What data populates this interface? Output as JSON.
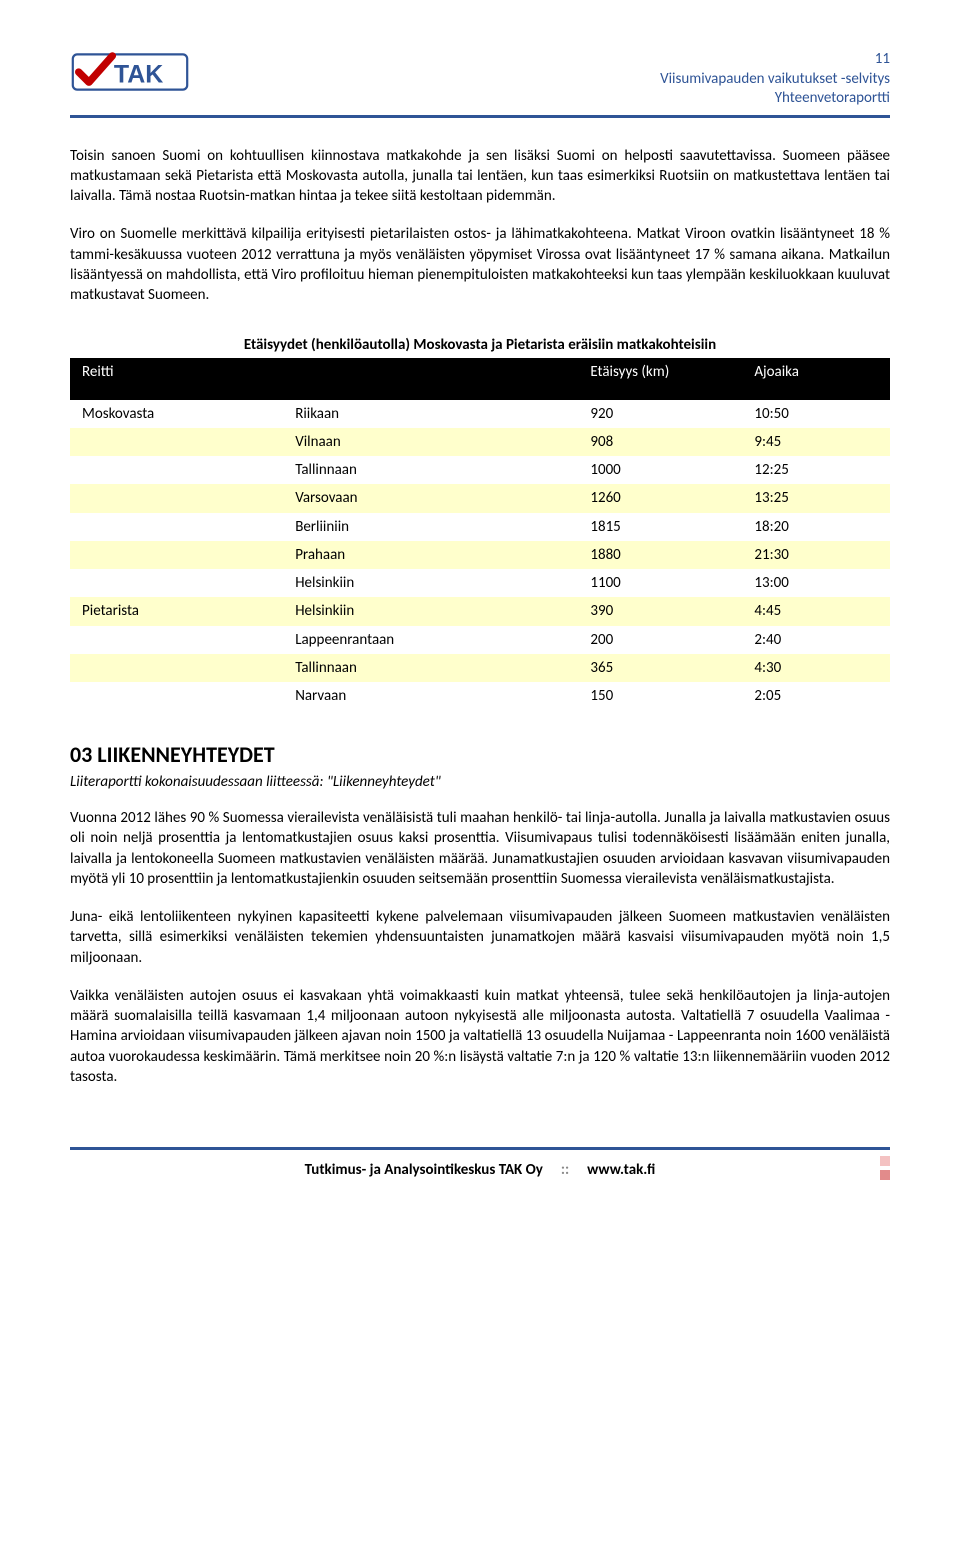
{
  "header": {
    "page_number": "11",
    "line1": "Viisumivapauden vaikutukset -selvitys",
    "line2": "Yhteenvetoraportti",
    "logo_text": "TAK",
    "check_color": "#c10000",
    "brand_color": "#2f5496"
  },
  "body": {
    "p1": "Toisin sanoen Suomi on kohtuullisen kiinnostava matkakohde ja sen lisäksi Suomi on helposti saavutettavissa. Suomeen pääsee matkustamaan sekä Pietarista että Moskovasta autolla, junalla tai lentäen, kun taas esimerkiksi Ruotsiin on matkustettava lentäen tai laivalla. Tämä nostaa Ruotsin-matkan hintaa ja tekee siitä kestoltaan pidemmän.",
    "p2": "Viro on Suomelle merkittävä kilpailija erityisesti pietarilaisten ostos- ja lähimatkakohteena. Matkat Viroon ovatkin lisääntyneet 18 % tammi-kesäkuussa vuoteen 2012 verrattuna ja myös venäläisten yöpymiset Virossa ovat lisääntyneet 17 % samana aikana. Matkailun lisääntyessä on mahdollista, että Viro profiloituu hieman pienempituloisten matkakohteeksi kun taas ylempään keskiluokkaan kuuluvat matkustavat Suomeen."
  },
  "table": {
    "title": "Etäisyydet (henkilöautolla) Moskovasta ja Pietarista eräisiin matkakohteisiin",
    "headers": {
      "route": "Reitti",
      "dest": "",
      "dist": "Etäisyys (km)",
      "time": "Ajoaika"
    },
    "header_bg": "#000000",
    "header_fg": "#ffffff",
    "alt_row_bg": "#ffffcc",
    "rows": [
      {
        "from": "Moskovasta",
        "to": "Riikaan",
        "km": "920",
        "t": "10:50",
        "alt": false
      },
      {
        "from": "",
        "to": "Vilnaan",
        "km": "908",
        "t": "9:45",
        "alt": true
      },
      {
        "from": "",
        "to": "Tallinnaan",
        "km": "1000",
        "t": "12:25",
        "alt": false
      },
      {
        "from": "",
        "to": "Varsovaan",
        "km": "1260",
        "t": "13:25",
        "alt": true
      },
      {
        "from": "",
        "to": "Berliiniin",
        "km": "1815",
        "t": "18:20",
        "alt": false
      },
      {
        "from": "",
        "to": "Prahaan",
        "km": "1880",
        "t": "21:30",
        "alt": true
      },
      {
        "from": "",
        "to": "Helsinkiin",
        "km": "1100",
        "t": "13:00",
        "alt": false
      },
      {
        "from": "Pietarista",
        "to": "Helsinkiin",
        "km": "390",
        "t": "4:45",
        "alt": true
      },
      {
        "from": "",
        "to": "Lappeenrantaan",
        "km": "200",
        "t": "2:40",
        "alt": false
      },
      {
        "from": "",
        "to": "Tallinnaan",
        "km": "365",
        "t": "4:30",
        "alt": true
      },
      {
        "from": "",
        "to": "Narvaan",
        "km": "150",
        "t": "2:05",
        "alt": false
      }
    ]
  },
  "section": {
    "heading": "03 LIIKENNEYHTEYDET",
    "sub": "Liiteraportti kokonaisuudessaan liitteessä: \"Liikenneyhteydet\"",
    "p1": "Vuonna 2012 lähes 90 % Suomessa vierailevista venäläisistä tuli maahan henkilö- tai linja-autolla. Junalla ja laivalla matkustavien osuus oli noin neljä prosenttia ja lentomatkustajien osuus kaksi prosenttia. Viisumivapaus tulisi todennäköisesti lisäämään eniten junalla, laivalla ja lentokoneella Suomeen matkustavien venäläisten määrää. Junamatkustajien osuuden arvioidaan kasvavan viisumivapauden myötä yli 10 prosenttiin ja lentomatkustajienkin osuuden seitsemään prosenttiin Suomessa vierailevista venäläismatkustajista.",
    "p2": "Juna- eikä lentoliikenteen nykyinen kapasiteetti kykene palvelemaan viisumivapauden jälkeen Suomeen matkustavien venäläisten tarvetta, sillä esimerkiksi venäläisten tekemien yhdensuuntaisten junamatkojen määrä kasvaisi viisumivapauden myötä noin 1,5 miljoonaan.",
    "p3": "Vaikka venäläisten autojen osuus ei kasvakaan yhtä voimakkaasti kuin matkat yhteensä, tulee sekä henkilöautojen ja linja-autojen määrä suomalaisilla teillä kasvamaan 1,4 miljoonaan autoon nykyisestä alle miljoonasta autosta. Valtatiellä 7 osuudella Vaalimaa - Hamina arvioidaan viisumivapauden jälkeen ajavan noin 1500 ja valtatiellä 13 osuudella Nuijamaa - Lappeenranta noin 1600 venäläistä autoa vuorokaudessa keskimäärin. Tämä merkitsee noin 20 %:n lisäystä valtatie 7:n ja 120 % valtatie 13:n liikennemääriin vuoden 2012 tasosta."
  },
  "footer": {
    "left": "Tutkimus- ja Analysointikeskus TAK Oy",
    "sep": "::",
    "right": "www.tak.fi",
    "dot1": "#f4c2c2",
    "dot2": "#e28b8b"
  }
}
